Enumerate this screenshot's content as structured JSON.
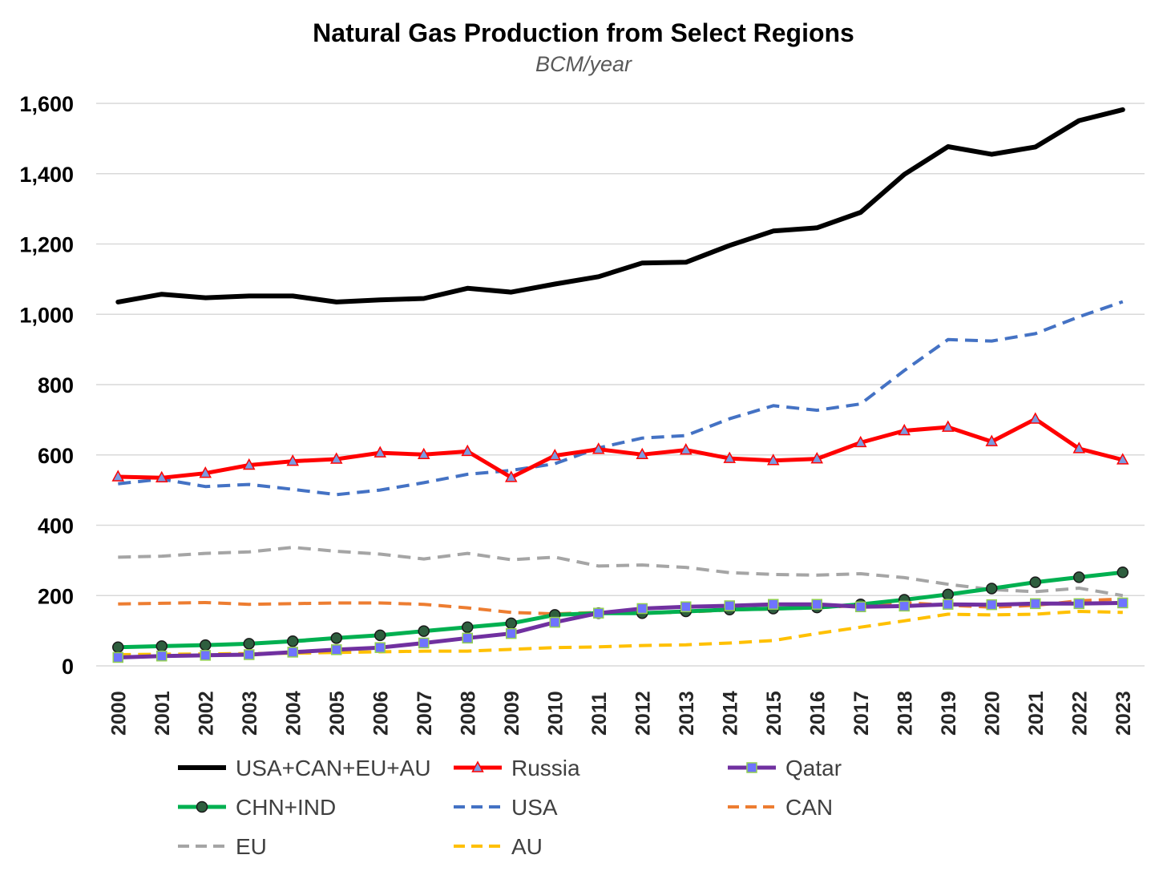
{
  "chart_data": {
    "type": "line",
    "title": "Natural Gas Production from Select Regions",
    "subtitle": "BCM/year",
    "xlabel": "",
    "ylabel": "",
    "ylim": [
      0,
      1600
    ],
    "yticks": [
      "0",
      "200",
      "400",
      "600",
      "800",
      "1,000",
      "1,200",
      "1,400",
      "1,600"
    ],
    "ytick_values": [
      0,
      200,
      400,
      600,
      800,
      1000,
      1200,
      1400,
      1600
    ],
    "grid": true,
    "legend_position": "bottom",
    "categories": [
      "2000",
      "2001",
      "2002",
      "2003",
      "2004",
      "2005",
      "2006",
      "2007",
      "2008",
      "2009",
      "2010",
      "2011",
      "2012",
      "2013",
      "2014",
      "2015",
      "2016",
      "2017",
      "2018",
      "2019",
      "2020",
      "2021",
      "2022",
      "2023"
    ],
    "series": [
      {
        "name": "USA+CAN+EU+AU",
        "color": "#000000",
        "dash": "solid",
        "marker": "none",
        "values": [
          1035,
          1057,
          1047,
          1052,
          1052,
          1035,
          1041,
          1045,
          1074,
          1063,
          1086,
          1107,
          1146,
          1148,
          1196,
          1237,
          1246,
          1290,
          1398,
          1477,
          1455,
          1476,
          1551,
          1582
        ]
      },
      {
        "name": "Russia",
        "color": "#ff0000",
        "dash": "solid",
        "marker": "triangle",
        "values": [
          538,
          535,
          548,
          571,
          582,
          588,
          606,
          601,
          610,
          536,
          598,
          616,
          601,
          614,
          590,
          584,
          589,
          635,
          669,
          679,
          638,
          702,
          618,
          586
        ]
      },
      {
        "name": "Qatar",
        "color": "#7030a0",
        "dash": "solid",
        "marker": "square",
        "values": [
          24,
          28,
          30,
          32,
          39,
          46,
          52,
          65,
          79,
          92,
          124,
          150,
          163,
          168,
          171,
          175,
          175,
          168,
          170,
          175,
          174,
          177,
          177,
          179
        ]
      },
      {
        "name": "CHN+IND",
        "color": "#00b050",
        "dash": "solid",
        "marker": "circle",
        "values": [
          53,
          56,
          59,
          63,
          70,
          79,
          87,
          99,
          110,
          121,
          145,
          150,
          150,
          155,
          160,
          163,
          166,
          175,
          188,
          203,
          220,
          238,
          252,
          266
        ]
      },
      {
        "name": "USA",
        "color": "#4472c4",
        "dash": "dashed",
        "marker": "none",
        "values": [
          518,
          531,
          510,
          516,
          502,
          487,
          500,
          521,
          545,
          556,
          575,
          620,
          648,
          655,
          703,
          740,
          727,
          745,
          840,
          928,
          924,
          945,
          993,
          1036
        ]
      },
      {
        "name": "CAN",
        "color": "#ed7d31",
        "dash": "dashed",
        "marker": "none",
        "values": [
          176,
          178,
          180,
          175,
          177,
          179,
          179,
          175,
          165,
          152,
          148,
          152,
          150,
          153,
          159,
          162,
          165,
          172,
          180,
          172,
          167,
          172,
          185,
          190
        ]
      },
      {
        "name": "EU",
        "color": "#a5a5a5",
        "dash": "dashed",
        "marker": "none",
        "values": [
          309,
          312,
          320,
          324,
          337,
          326,
          318,
          304,
          320,
          302,
          309,
          284,
          287,
          280,
          265,
          260,
          258,
          262,
          251,
          232,
          217,
          211,
          221,
          200
        ]
      },
      {
        "name": "AU",
        "color": "#ffc000",
        "dash": "dashed",
        "marker": "none",
        "values": [
          32,
          33,
          34,
          35,
          36,
          38,
          40,
          42,
          42,
          47,
          52,
          54,
          58,
          60,
          65,
          72,
          92,
          110,
          128,
          147,
          145,
          147,
          155,
          152
        ]
      }
    ]
  }
}
